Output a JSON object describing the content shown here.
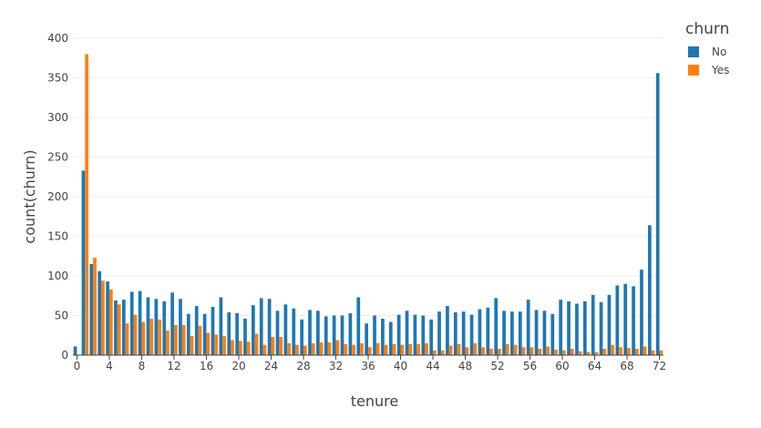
{
  "chart_data": {
    "type": "bar",
    "xlabel": "tenure",
    "ylabel": "count(churn)",
    "ylim": [
      0,
      400
    ],
    "xlim": [
      -0.5,
      72.5
    ],
    "yticks": [
      0,
      50,
      100,
      150,
      200,
      250,
      300,
      350,
      400
    ],
    "xticks": [
      0,
      4,
      8,
      12,
      16,
      20,
      24,
      28,
      32,
      36,
      40,
      44,
      48,
      52,
      56,
      60,
      64,
      68,
      72
    ],
    "grid": true,
    "legend": {
      "title": "churn",
      "position": "top-right"
    },
    "x": [
      0,
      1,
      2,
      3,
      4,
      5,
      6,
      7,
      8,
      9,
      10,
      11,
      12,
      13,
      14,
      15,
      16,
      17,
      18,
      19,
      20,
      21,
      22,
      23,
      24,
      25,
      26,
      27,
      28,
      29,
      30,
      31,
      32,
      33,
      34,
      35,
      36,
      37,
      38,
      39,
      40,
      41,
      42,
      43,
      44,
      45,
      46,
      47,
      48,
      49,
      50,
      51,
      52,
      53,
      54,
      55,
      56,
      57,
      58,
      59,
      60,
      61,
      62,
      63,
      64,
      65,
      66,
      67,
      68,
      69,
      70,
      71,
      72
    ],
    "series": [
      {
        "name": "No",
        "color": "#1f77b4",
        "values": [
          11,
          233,
          115,
          106,
          93,
          69,
          70,
          80,
          81,
          73,
          71,
          68,
          79,
          71,
          52,
          62,
          52,
          61,
          73,
          54,
          53,
          46,
          63,
          72,
          71,
          56,
          64,
          59,
          45,
          57,
          56,
          49,
          50,
          50,
          53,
          73,
          40,
          50,
          46,
          42,
          51,
          56,
          51,
          50,
          45,
          55,
          62,
          54,
          55,
          51,
          58,
          60,
          72,
          56,
          55,
          55,
          70,
          57,
          56,
          52,
          70,
          68,
          65,
          68,
          76,
          67,
          76,
          88,
          90,
          87,
          108,
          164,
          356
        ]
      },
      {
        "name": "Yes",
        "color": "#ff7f0e",
        "values": [
          0,
          380,
          123,
          94,
          83,
          64,
          40,
          51,
          42,
          46,
          45,
          31,
          38,
          38,
          24,
          37,
          28,
          26,
          24,
          19,
          18,
          17,
          27,
          13,
          23,
          23,
          15,
          13,
          12,
          15,
          16,
          16,
          19,
          14,
          13,
          15,
          10,
          15,
          13,
          14,
          13,
          14,
          14,
          15,
          6,
          6,
          12,
          14,
          10,
          15,
          10,
          8,
          8,
          14,
          13,
          10,
          10,
          8,
          11,
          7,
          6,
          8,
          5,
          4,
          4,
          8,
          13,
          10,
          9,
          8,
          11,
          6,
          6
        ]
      }
    ]
  }
}
